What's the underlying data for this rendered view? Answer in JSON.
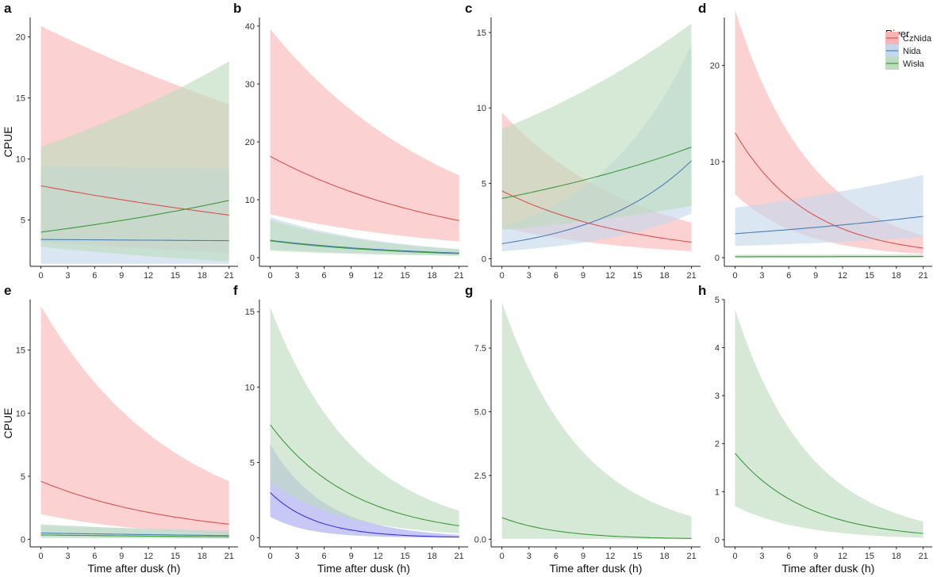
{
  "legend": {
    "title": "River",
    "entries": [
      {
        "name": "CzNida",
        "line": "#d9534f",
        "fill": "#f8b4b4"
      },
      {
        "name": "Nida",
        "line": "#4a7fb8",
        "fill": "#c5d6ec"
      },
      {
        "name": "Wisła",
        "line": "#3c9a3c",
        "fill": "#bddcbd"
      }
    ]
  },
  "extra_colors": {
    "blue_line": "#3434e0",
    "blue_fill": "#a7a7f2",
    "teal_line": "#2aa39a"
  },
  "chart_data": [
    {
      "type": "line",
      "panel": "a",
      "title": "",
      "xlabel": "",
      "ylabel": "CPUE",
      "x": [
        0,
        21
      ],
      "xticks": [
        0,
        3,
        6,
        9,
        12,
        15,
        18,
        21
      ],
      "xlim": [
        -1.2,
        22
      ],
      "yticks": [
        5,
        10,
        15,
        20
      ],
      "ylim": [
        1.2,
        21.6
      ],
      "series": [
        {
          "name": "CzNida",
          "color": "CzNida",
          "x": [
            0,
            21
          ],
          "y": [
            7.8,
            5.4
          ],
          "lower": [
            3.2,
            2.3
          ],
          "upper": [
            20.9,
            14.5
          ]
        },
        {
          "name": "Nida",
          "color": "Nida",
          "x": [
            0,
            21
          ],
          "y": [
            3.4,
            3.3
          ],
          "lower": [
            1.4,
            1.4
          ],
          "upper": [
            9.4,
            9.2
          ]
        },
        {
          "name": "Wisła",
          "color": "Wisła",
          "x": [
            0,
            21
          ],
          "y": [
            4.0,
            6.6
          ],
          "lower": [
            2.8,
            1.6
          ],
          "upper": [
            11.0,
            18.0
          ]
        }
      ]
    },
    {
      "type": "line",
      "panel": "b",
      "title": "",
      "xlabel": "",
      "ylabel": "",
      "x": [
        0,
        21
      ],
      "xticks": [
        0,
        3,
        6,
        9,
        12,
        15,
        18,
        21
      ],
      "xlim": [
        -1.2,
        22
      ],
      "yticks": [
        0,
        10,
        20,
        30,
        40
      ],
      "ylim": [
        -1.5,
        41.5
      ],
      "series": [
        {
          "name": "CzNida",
          "color": "CzNida",
          "x": [
            0,
            21
          ],
          "y": [
            17.5,
            6.4
          ],
          "lower": [
            7.5,
            2.8
          ],
          "upper": [
            39.5,
            14.2
          ]
        },
        {
          "name": "Nida",
          "color": "Nida",
          "x": [
            0,
            21
          ],
          "y": [
            3.0,
            0.8
          ],
          "lower": [
            1.4,
            0.4
          ],
          "upper": [
            7.0,
            1.5
          ]
        },
        {
          "name": "Wisła",
          "color": "Wisła",
          "x": [
            0,
            21
          ],
          "y": [
            2.9,
            0.7
          ],
          "lower": [
            1.2,
            0.3
          ],
          "upper": [
            6.5,
            1.4
          ]
        }
      ]
    },
    {
      "type": "line",
      "panel": "c",
      "title": "",
      "xlabel": "",
      "ylabel": "",
      "x": [
        0,
        21
      ],
      "xticks": [
        0,
        3,
        6,
        9,
        12,
        15,
        18,
        21
      ],
      "xlim": [
        -1.2,
        22
      ],
      "yticks": [
        0,
        5,
        10,
        15
      ],
      "ylim": [
        -0.5,
        16.0
      ],
      "series": [
        {
          "name": "CzNida",
          "color": "CzNida",
          "x": [
            0,
            21
          ],
          "y": [
            4.5,
            1.1
          ],
          "lower": [
            2.1,
            0.5
          ],
          "upper": [
            9.7,
            2.4
          ]
        },
        {
          "name": "Nida",
          "color": "Nida",
          "x": [
            0,
            21
          ],
          "y": [
            1.0,
            6.5
          ],
          "lower": [
            0.5,
            3.0
          ],
          "upper": [
            2.1,
            14.2
          ]
        },
        {
          "name": "Wisła",
          "color": "Wisła",
          "x": [
            0,
            21
          ],
          "y": [
            4.0,
            7.4
          ],
          "lower": [
            1.9,
            3.5
          ],
          "upper": [
            8.6,
            15.6
          ]
        }
      ]
    },
    {
      "type": "line",
      "panel": "d",
      "title": "",
      "xlabel": "",
      "ylabel": "",
      "x": [
        0,
        21
      ],
      "xticks": [
        0,
        3,
        6,
        9,
        12,
        15,
        18,
        21
      ],
      "xlim": [
        -1.2,
        22
      ],
      "yticks": [
        0,
        10,
        20
      ],
      "ylim": [
        -0.9,
        25.0
      ],
      "series": [
        {
          "name": "CzNida",
          "color": "CzNida",
          "x": [
            0,
            21
          ],
          "y": [
            13.0,
            1.0
          ],
          "lower": [
            6.6,
            0.4
          ],
          "upper": [
            25.8,
            2.3
          ]
        },
        {
          "name": "Nida",
          "color": "Nida",
          "x": [
            0,
            21
          ],
          "y": [
            2.5,
            4.3
          ],
          "lower": [
            1.2,
            2.1
          ],
          "upper": [
            5.2,
            8.6
          ]
        },
        {
          "name": "Wisła",
          "color": "Wisła",
          "x": [
            0,
            21
          ],
          "y": [
            0.1,
            0.12
          ],
          "lower": [
            0.0,
            0.0
          ],
          "upper": [
            0.3,
            0.35
          ]
        }
      ]
    },
    {
      "type": "line",
      "panel": "e",
      "title": "",
      "xlabel": "Time after dusk (h)",
      "ylabel": "CPUE",
      "x": [
        0,
        21
      ],
      "xticks": [
        0,
        3,
        6,
        9,
        12,
        15,
        18,
        21
      ],
      "xlim": [
        -1.2,
        22
      ],
      "yticks": [
        0,
        5,
        10,
        15
      ],
      "ylim": [
        -0.6,
        19.0
      ],
      "series": [
        {
          "name": "CzNida",
          "color": "CzNida",
          "x": [
            0,
            21
          ],
          "y": [
            4.6,
            1.2
          ],
          "lower": [
            2.0,
            0.4
          ],
          "upper": [
            18.5,
            4.6
          ]
        },
        {
          "name": "Nida",
          "color": "Nida",
          "x": [
            0,
            21
          ],
          "y": [
            0.5,
            0.3
          ],
          "lower": [
            0.2,
            0.1
          ],
          "upper": [
            1.1,
            0.7
          ]
        },
        {
          "name": "Wisła",
          "color": "Wisła",
          "x": [
            0,
            21
          ],
          "y": [
            0.35,
            0.2
          ],
          "lower": [
            0.1,
            0.05
          ],
          "upper": [
            1.2,
            0.6
          ]
        }
      ]
    },
    {
      "type": "line",
      "panel": "f",
      "title": "",
      "xlabel": "Time after dusk (h)",
      "ylabel": "",
      "x": [
        0,
        21
      ],
      "xticks": [
        0,
        3,
        6,
        9,
        12,
        15,
        18,
        21
      ],
      "xlim": [
        -1.2,
        22
      ],
      "yticks": [
        0,
        5,
        10,
        15
      ],
      "ylim": [
        -0.6,
        15.8
      ],
      "series": [
        {
          "name": "Nida",
          "color": "blue",
          "x": [
            0,
            21
          ],
          "y": [
            3.0,
            0.05
          ],
          "lower": [
            1.4,
            0.01
          ],
          "upper": [
            6.2,
            0.2
          ]
        },
        {
          "name": "Wisła",
          "color": "Wisła",
          "x": [
            0,
            21
          ],
          "y": [
            7.5,
            0.8
          ],
          "lower": [
            3.7,
            0.3
          ],
          "upper": [
            15.3,
            1.8
          ]
        }
      ]
    },
    {
      "type": "line",
      "panel": "g",
      "title": "",
      "xlabel": "Time after dusk (h)",
      "ylabel": "",
      "x": [
        0,
        21
      ],
      "xticks": [
        0,
        3,
        6,
        9,
        12,
        15,
        18,
        21
      ],
      "xlim": [
        -1.2,
        22
      ],
      "yticks": [
        "0.0",
        "2.5",
        "5.0",
        "7.5"
      ],
      "ylim": [
        -0.3,
        9.4
      ],
      "series": [
        {
          "name": "Wisła",
          "color": "Wisła",
          "x": [
            0,
            21
          ],
          "y": [
            0.85,
            0.03
          ],
          "lower": [
            0.02,
            0.0
          ],
          "upper": [
            9.3,
            0.9
          ]
        }
      ]
    },
    {
      "type": "line",
      "panel": "h",
      "title": "",
      "xlabel": "Time after dusk (h)",
      "ylabel": "",
      "x": [
        0,
        21
      ],
      "xticks": [
        0,
        3,
        6,
        9,
        12,
        15,
        18,
        21
      ],
      "xlim": [
        -1.2,
        22
      ],
      "yticks": [
        0,
        1,
        2,
        3,
        4,
        5
      ],
      "ylim": [
        -0.15,
        5.0
      ],
      "series": [
        {
          "name": "Wisła",
          "color": "Wisła",
          "x": [
            0,
            21
          ],
          "y": [
            1.8,
            0.13
          ],
          "lower": [
            0.7,
            0.04
          ],
          "upper": [
            4.8,
            0.38
          ]
        }
      ]
    }
  ]
}
